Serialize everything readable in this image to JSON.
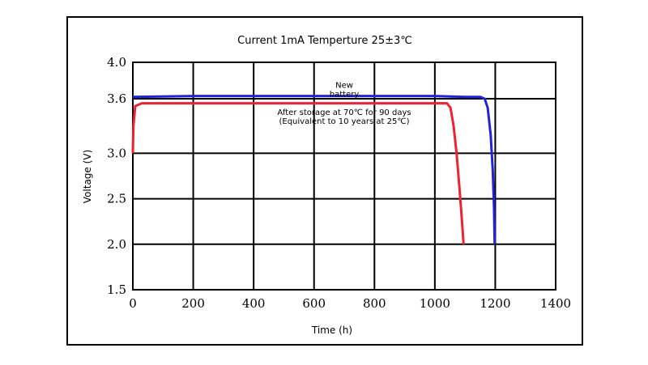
{
  "chart_data": {
    "type": "line",
    "title": "Current 1mA  Temperture 25±3℃",
    "xlabel": "Time (h)",
    "ylabel": "Voltage (V)",
    "xlim": [
      0,
      1400
    ],
    "ylim": [
      1.5,
      4.0
    ],
    "x_ticks": [
      0,
      200,
      400,
      600,
      800,
      1000,
      1200,
      1400
    ],
    "y_ticks": [
      1.5,
      2.0,
      2.5,
      3.0,
      3.6,
      4.0
    ],
    "x_tick_labels": [
      "0",
      "200",
      "400",
      "600",
      "800",
      "1000",
      "1200",
      "1400"
    ],
    "y_tick_labels": [
      "1.5",
      "2.0",
      "2.5",
      "3.0",
      "3.6",
      "4.0"
    ],
    "grid": true,
    "series": [
      {
        "name": "New battery",
        "color": "#2222dd",
        "points": [
          [
            0,
            3.62
          ],
          [
            200,
            3.63
          ],
          [
            1000,
            3.63
          ],
          [
            1100,
            3.62
          ],
          [
            1150,
            3.62
          ],
          [
            1165,
            3.6
          ],
          [
            1175,
            3.5
          ],
          [
            1185,
            3.2
          ],
          [
            1192,
            2.8
          ],
          [
            1196,
            2.4
          ],
          [
            1198,
            2.0
          ]
        ]
      },
      {
        "name": "After storage at 70℃ for 90 days (Equivalent to 10 years at 25℃)",
        "color": "#ee2233",
        "points": [
          [
            0,
            3.0
          ],
          [
            2,
            3.3
          ],
          [
            8,
            3.52
          ],
          [
            30,
            3.55
          ],
          [
            1000,
            3.55
          ],
          [
            1040,
            3.55
          ],
          [
            1052,
            3.5
          ],
          [
            1062,
            3.3
          ],
          [
            1072,
            3.0
          ],
          [
            1082,
            2.6
          ],
          [
            1090,
            2.25
          ],
          [
            1095,
            2.0
          ]
        ]
      }
    ],
    "annotations": [
      {
        "lines": [
          "New",
          "battery"
        ],
        "x": 700,
        "y": 3.72
      },
      {
        "lines": [
          "After storage at 70℃ for 90 days",
          "(Equivalent to 10 years at 25℃)"
        ],
        "x": 700,
        "y": 3.42
      }
    ]
  }
}
